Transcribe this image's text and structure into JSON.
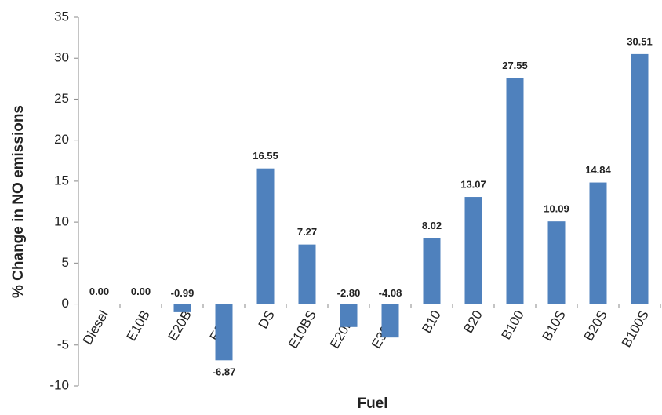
{
  "chart_data": {
    "type": "bar",
    "x_label": "Fuel",
    "y_label": "% Change in NO emissions",
    "categories": [
      "Diesel",
      "E10B",
      "E20B",
      "E30B",
      "DS",
      "E10BS",
      "E20BS",
      "E30BS",
      "B10",
      "B20",
      "B100",
      "B10S",
      "B20S",
      "B100S"
    ],
    "values": [
      0,
      0,
      -0.99,
      -6.87,
      16.55,
      7.27,
      -2.8,
      -4.08,
      8.02,
      13.07,
      27.55,
      10.09,
      14.84,
      30.51
    ],
    "value_labels": [
      "0.00",
      "0.00",
      "-0.99",
      "-6.87",
      "16.55",
      "7.27",
      "-2.80",
      "-4.08",
      "8.02",
      "13.07",
      "27.55",
      "10.09",
      "14.84",
      "30.51"
    ],
    "color": "#4f81bd",
    "ylim": [
      -10,
      35
    ],
    "yticks": [
      -10,
      -5,
      0,
      5,
      10,
      15,
      20,
      25,
      30,
      35
    ],
    "grid": false
  }
}
